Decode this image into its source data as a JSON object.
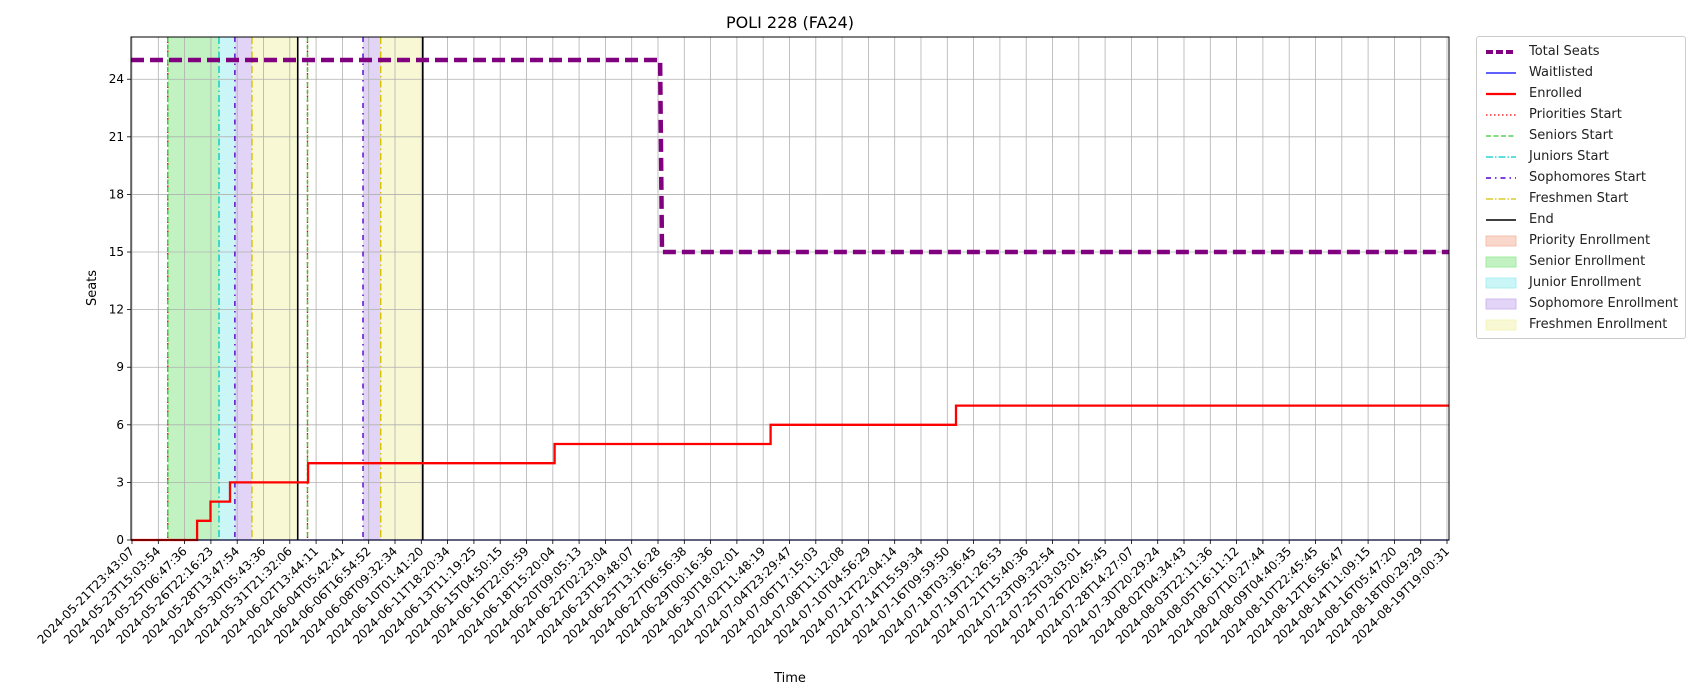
{
  "chart_data": {
    "type": "line",
    "title": "POLI 228 (FA24)",
    "xlabel": "Time",
    "ylabel": "Seats",
    "ylim": [
      0,
      26.2
    ],
    "xlim": [
      "2024-05-21T23:43:07",
      "2024-08-20T00:00:00"
    ],
    "yticks": [
      0,
      3,
      6,
      9,
      12,
      15,
      18,
      21,
      24
    ],
    "grid": true,
    "legend_position": "outside-right-top",
    "xticks": [
      "2024-05-21T23:43:07",
      "2024-05-23T15:03:54",
      "2024-05-25T06:47:36",
      "2024-05-26T22:16:23",
      "2024-05-28T13:47:54",
      "2024-05-30T05:43:36",
      "2024-05-31T21:32:06",
      "2024-06-02T13:44:11",
      "2024-06-04T05:42:41",
      "2024-06-06T16:54:52",
      "2024-06-08T09:32:34",
      "2024-06-10T01:41:20",
      "2024-06-11T18:20:34",
      "2024-06-13T11:19:25",
      "2024-06-15T04:50:15",
      "2024-06-16T22:05:59",
      "2024-06-18T15:20:04",
      "2024-06-20T09:05:13",
      "2024-06-22T02:23:04",
      "2024-06-23T19:48:07",
      "2024-06-25T13:16:28",
      "2024-06-27T06:56:38",
      "2024-06-29T00:16:36",
      "2024-06-30T18:02:01",
      "2024-07-02T11:48:19",
      "2024-07-04T23:29:47",
      "2024-07-06T17:15:03",
      "2024-07-08T11:12:08",
      "2024-07-10T04:56:29",
      "2024-07-12T22:04:14",
      "2024-07-14T15:59:34",
      "2024-07-16T09:59:50",
      "2024-07-18T03:36:45",
      "2024-07-19T21:26:53",
      "2024-07-21T15:40:36",
      "2024-07-23T09:32:54",
      "2024-07-25T03:03:01",
      "2024-07-26T20:45:45",
      "2024-07-28T14:27:07",
      "2024-07-30T20:29:24",
      "2024-08-02T04:34:43",
      "2024-08-03T22:11:36",
      "2024-08-05T16:11:12",
      "2024-08-07T10:27:44",
      "2024-08-09T04:40:35",
      "2024-08-10T22:45:45",
      "2024-08-12T16:56:47",
      "2024-08-14T11:09:15",
      "2024-08-16T05:47:20",
      "2024-08-18T00:29:29",
      "2024-08-19T19:00:31"
    ],
    "series": [
      {
        "name": "Total Seats",
        "color": "#800080",
        "style": "dashed",
        "x": [
          "2024-05-21T23:43:07",
          "2024-06-27T03:00:00",
          "2024-06-27T06:00:00",
          "2024-08-20T00:00:00"
        ],
        "y": [
          25,
          25,
          15,
          15
        ]
      },
      {
        "name": "Waitlisted",
        "color": "#0000ff",
        "style": "solid",
        "x": [
          "2024-05-21T23:43:07",
          "2024-08-20T00:00:00"
        ],
        "y": [
          0,
          0
        ]
      },
      {
        "name": "Enrolled",
        "color": "#ff0000",
        "style": "step",
        "x": [
          "2024-05-21T23:43:07",
          "2024-05-26T12:00:00",
          "2024-05-27T10:00:00",
          "2024-05-28T18:00:00",
          "2024-06-03T02:00:00",
          "2024-06-19T22:00:00",
          "2024-07-04T16:00:00",
          "2024-07-17T08:00:00",
          "2024-08-20T00:00:00"
        ],
        "y": [
          0,
          1,
          2,
          3,
          4,
          5,
          6,
          7,
          7
        ]
      }
    ],
    "vertical_lines": [
      {
        "name": "Priorities Start",
        "color": "#ff0000",
        "style": "dotted",
        "x": [
          "2024-05-24T12:00:00",
          "2024-06-03T01:00:00"
        ]
      },
      {
        "name": "Seniors Start",
        "color": "#33cc33",
        "style": "dashed",
        "x": [
          "2024-05-24T12:00:00",
          "2024-06-03T01:00:00"
        ]
      },
      {
        "name": "Juniors Start",
        "color": "#00cccc",
        "style": "dashdot",
        "x": [
          "2024-05-28T00:00:00"
        ]
      },
      {
        "name": "Sophomores Start",
        "color": "#5500cc",
        "style": "dashdotdot",
        "x": [
          "2024-05-29T02:00:00",
          "2024-06-06T20:00:00"
        ]
      },
      {
        "name": "Freshmen Start",
        "color": "#d4c200",
        "style": "dashdot",
        "x": [
          "2024-05-30T06:00:00",
          "2024-06-08T01:00:00"
        ]
      },
      {
        "name": "End",
        "color": "#000000",
        "style": "solid",
        "x": [
          "2024-06-02T09:00:00",
          "2024-06-10T22:00:00"
        ]
      }
    ],
    "spans": [
      {
        "name": "Priority Enrollment",
        "color": "#f4b6a0",
        "ranges": []
      },
      {
        "name": "Senior Enrollment",
        "color": "#90e890",
        "ranges": [
          [
            "2024-05-24T12:00:00",
            "2024-05-28T00:00:00"
          ]
        ]
      },
      {
        "name": "Junior Enrollment",
        "color": "#a0eef0",
        "ranges": [
          [
            "2024-05-28T00:00:00",
            "2024-05-29T02:00:00"
          ]
        ]
      },
      {
        "name": "Sophomore Enrollment",
        "color": "#c8b0ee",
        "ranges": [
          [
            "2024-05-29T02:00:00",
            "2024-05-30T06:00:00"
          ],
          [
            "2024-06-06T20:00:00",
            "2024-06-08T01:00:00"
          ]
        ]
      },
      {
        "name": "Freshmen Enrollment",
        "color": "#f2f2b0",
        "ranges": [
          [
            "2024-05-30T06:00:00",
            "2024-06-02T09:00:00"
          ],
          [
            "2024-06-08T01:00:00",
            "2024-06-10T22:00:00"
          ]
        ]
      }
    ]
  },
  "legend": [
    {
      "label": "Total Seats",
      "kind": "line",
      "color": "#800080",
      "dash": "7,3",
      "width": 4
    },
    {
      "label": "Waitlisted",
      "kind": "line",
      "color": "#0000ff",
      "dash": "",
      "width": 1.3
    },
    {
      "label": "Enrolled",
      "kind": "line",
      "color": "#ff0000",
      "dash": "",
      "width": 2.2
    },
    {
      "label": "Priorities Start",
      "kind": "line",
      "color": "#ff0000",
      "dash": "1.5,2.5",
      "width": 1.3
    },
    {
      "label": "Seniors Start",
      "kind": "line",
      "color": "#33cc33",
      "dash": "5,2.5",
      "width": 1.3
    },
    {
      "label": "Juniors Start",
      "kind": "line",
      "color": "#00cccc",
      "dash": "7,2,1.5,2",
      "width": 1.3
    },
    {
      "label": "Sophomores Start",
      "kind": "line",
      "color": "#5500cc",
      "dash": "5,4,1.5,4",
      "width": 1.6
    },
    {
      "label": "Freshmen Start",
      "kind": "line",
      "color": "#d4c200",
      "dash": "7,2,1.5,2",
      "width": 1.3
    },
    {
      "label": "End",
      "kind": "line",
      "color": "#000000",
      "dash": "",
      "width": 1.6
    },
    {
      "label": "Priority Enrollment",
      "kind": "patch",
      "color": "#f4b6a0"
    },
    {
      "label": "Senior Enrollment",
      "kind": "patch",
      "color": "#90e890"
    },
    {
      "label": "Junior Enrollment",
      "kind": "patch",
      "color": "#a0eef0"
    },
    {
      "label": "Sophomore Enrollment",
      "kind": "patch",
      "color": "#c8b0ee"
    },
    {
      "label": "Freshmen Enrollment",
      "kind": "patch",
      "color": "#f2f2b0"
    }
  ]
}
